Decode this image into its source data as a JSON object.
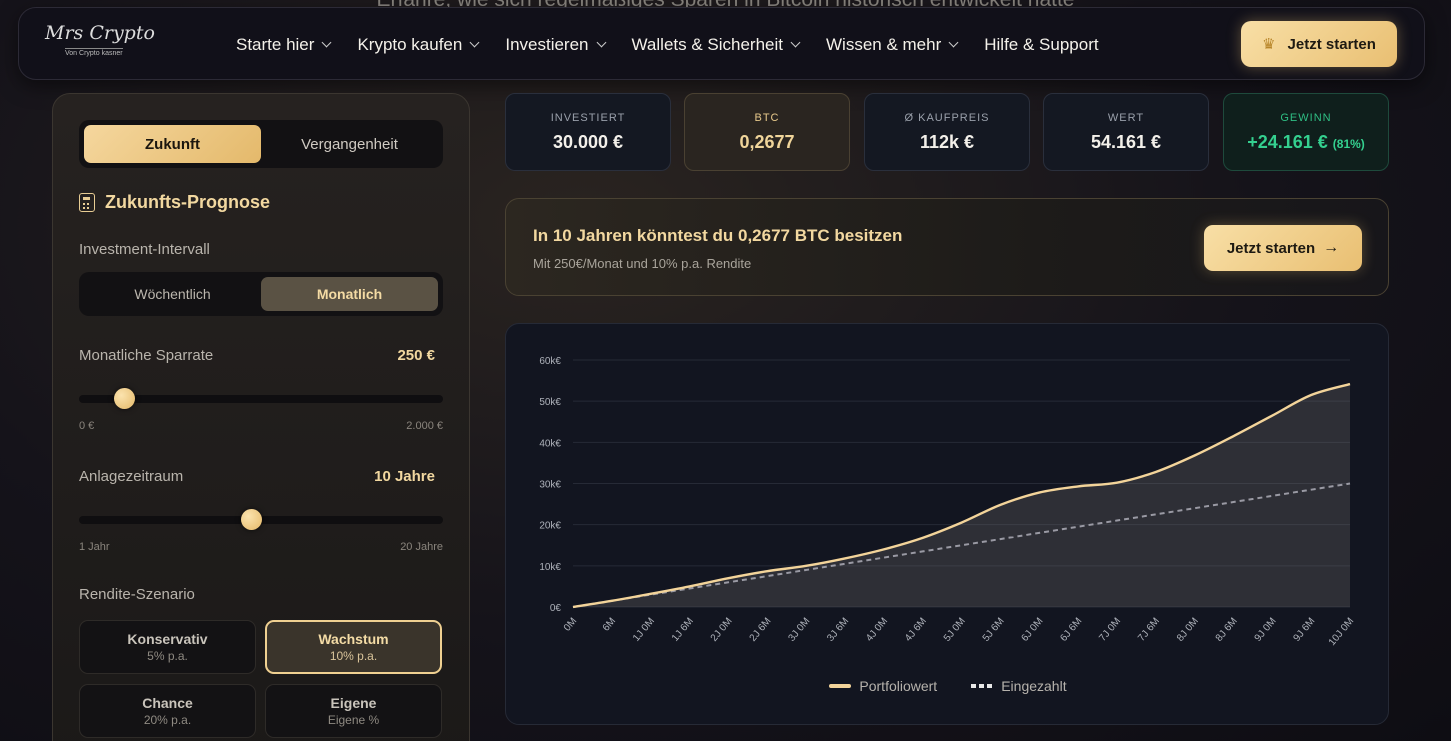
{
  "background_heading": "Erfahre, wie sich regelmäßiges Sparen in Bitcoin historisch entwickelt hätte",
  "nav": {
    "logo_script": "Mrs Crypto",
    "logo_sub": "Von Crypto kasner",
    "items": [
      {
        "label": "Starte hier",
        "dropdown": true
      },
      {
        "label": "Krypto kaufen",
        "dropdown": true
      },
      {
        "label": "Investieren",
        "dropdown": true
      },
      {
        "label": "Wallets & Sicherheit",
        "dropdown": true
      },
      {
        "label": "Wissen & mehr",
        "dropdown": true
      },
      {
        "label": "Hilfe & Support",
        "dropdown": false
      }
    ],
    "cta_label": "Jetzt starten",
    "cta_icon": "trophy-icon"
  },
  "panel": {
    "mode_tabs": [
      "Zukunft",
      "Vergangenheit"
    ],
    "mode_active": "Zukunft",
    "title": "Zukunfts-Prognose",
    "interval_label": "Investment-Intervall",
    "interval_options": [
      "Wöchentlich",
      "Monatlich"
    ],
    "interval_active": "Monatlich",
    "rate_label": "Monatliche Sparrate",
    "rate_value": "250 €",
    "rate_min": "0 €",
    "rate_max": "2.000 €",
    "rate_fraction": 0.125,
    "period_label": "Anlagezeitraum",
    "period_value": "10 Jahre",
    "period_min": "1 Jahr",
    "period_max": "20 Jahre",
    "period_fraction": 0.474,
    "scenario_label": "Rendite-Szenario",
    "scenarios": [
      {
        "name": "Konservativ",
        "sub": "5% p.a."
      },
      {
        "name": "Wachstum",
        "sub": "10% p.a."
      },
      {
        "name": "Chance",
        "sub": "20% p.a."
      },
      {
        "name": "Eigene",
        "sub": "Eigene %"
      }
    ],
    "scenario_active": "Wachstum"
  },
  "stats": [
    {
      "key": "INVESTIERT",
      "value": "30.000 €"
    },
    {
      "key": "BTC",
      "value": "0,2677"
    },
    {
      "key": "Ø KAUFPREIS",
      "value": "112k €"
    },
    {
      "key": "WERT",
      "value": "54.161 €"
    },
    {
      "key": "GEWINN",
      "value": "+24.161 €",
      "pct": "(81%)"
    }
  ],
  "banner": {
    "title": "In 10 Jahren könntest du 0,2677 BTC besitzen",
    "subtitle": "Mit 250€/Monat und 10% p.a. Rendite",
    "button": "Jetzt starten"
  },
  "chart_data": {
    "type": "line",
    "y_ticks": [
      "0€",
      "10k€",
      "20k€",
      "30k€",
      "40k€",
      "50k€",
      "60k€"
    ],
    "ylim": [
      0,
      60000
    ],
    "x_ticks": [
      "0M",
      "6M",
      "1J 0M",
      "1J 6M",
      "2J 0M",
      "2J 6M",
      "3J 0M",
      "3J 6M",
      "4J 0M",
      "4J 6M",
      "5J 0M",
      "5J 6M",
      "6J 0M",
      "6J 6M",
      "7J 0M",
      "7J 6M",
      "8J 0M",
      "8J 6M",
      "9J 0M",
      "9J 6M",
      "10J 0M"
    ],
    "grid": true,
    "legend_position": "bottom-center",
    "series": [
      {
        "name": "Portfoliowert",
        "style": "solid",
        "color": "#f3d49a",
        "values": [
          0,
          1500,
          3200,
          5000,
          7000,
          8700,
          10000,
          11800,
          14000,
          16800,
          20500,
          24800,
          27800,
          29300,
          30200,
          32800,
          36800,
          41500,
          46500,
          51500,
          54161
        ]
      },
      {
        "name": "Eingezahlt",
        "style": "dashed",
        "color": "#9a9aa4",
        "values": [
          0,
          1500,
          3000,
          4500,
          6000,
          7500,
          9000,
          10500,
          12000,
          13500,
          15000,
          16500,
          18000,
          19500,
          21000,
          22500,
          24000,
          25500,
          27000,
          28500,
          30000
        ]
      }
    ]
  }
}
